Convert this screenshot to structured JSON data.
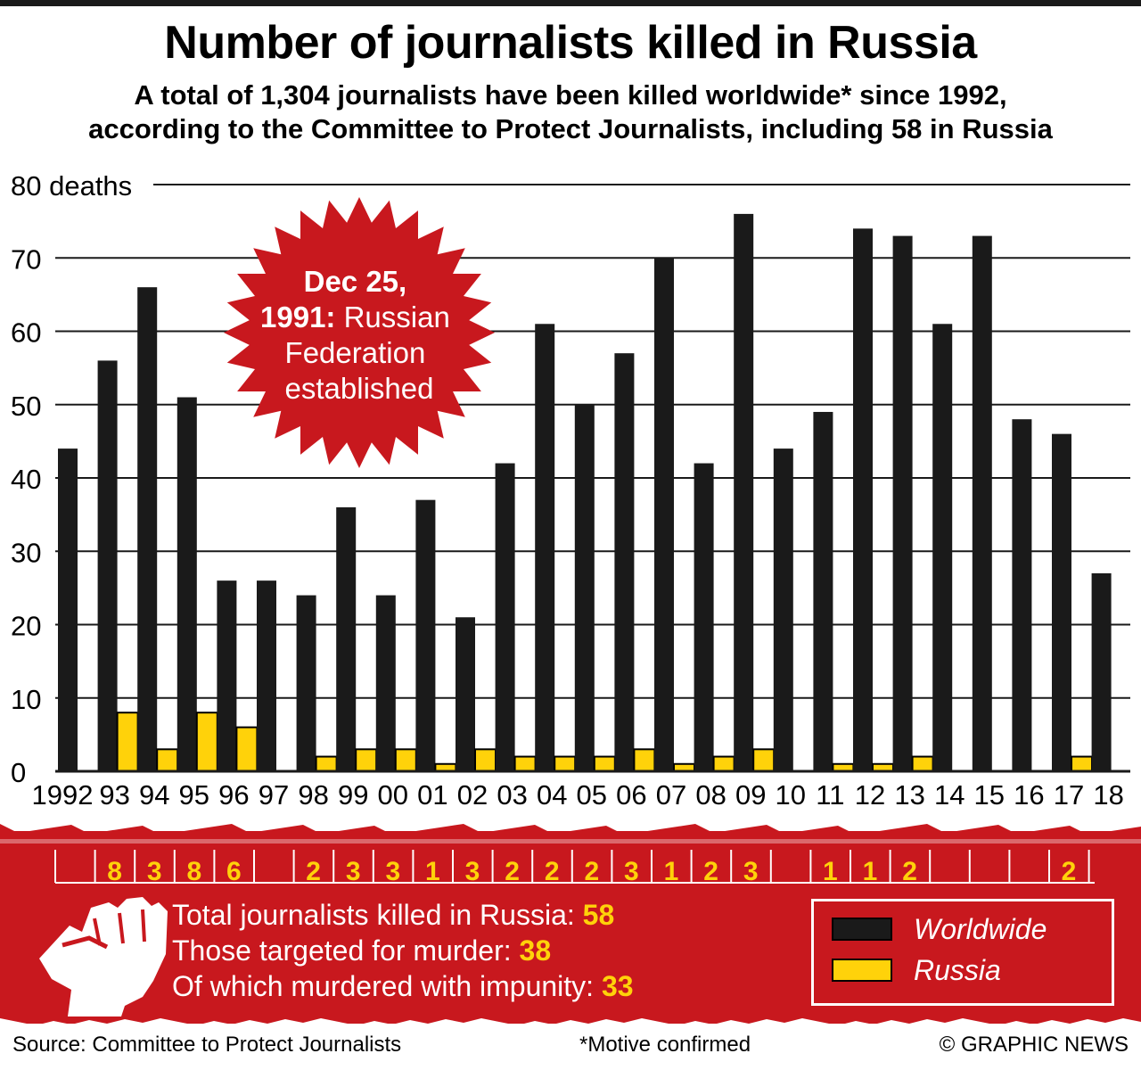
{
  "title": "Number of journalists killed in Russia",
  "subtitle_lines": [
    "A total of 1,304 journalists have been killed worldwide* since 1992,",
    "according to the Committee to Protect Journalists, including 58 in Russia"
  ],
  "annotation": {
    "bold1": "Dec 25,",
    "bold2": "1991:",
    "rest1": " Russian",
    "line3": "Federation",
    "line4": "established"
  },
  "stats": [
    {
      "label": "Total journalists killed in Russia: ",
      "value": "58"
    },
    {
      "label": "Those targeted for murder: ",
      "value": "38"
    },
    {
      "label": "Of which murdered with impunity: ",
      "value": "33"
    }
  ],
  "legend": {
    "worldwide": "Worldwide",
    "russia": "Russia"
  },
  "footer": {
    "source": "Source: Committee to Protect Journalists",
    "note": "*Motive confirmed",
    "credit": "© GRAPHIC NEWS"
  },
  "colors": {
    "worldwide": "#1a1a1a",
    "russia": "#ffd20a",
    "accent_red": "#c8181e"
  },
  "chart_data": {
    "type": "bar",
    "categories": [
      "1992",
      "93",
      "94",
      "95",
      "96",
      "97",
      "98",
      "99",
      "00",
      "01",
      "02",
      "03",
      "04",
      "05",
      "06",
      "07",
      "08",
      "09",
      "10",
      "11",
      "12",
      "13",
      "14",
      "15",
      "16",
      "17",
      "18"
    ],
    "series": [
      {
        "name": "Worldwide",
        "values": [
          44,
          56,
          66,
          51,
          26,
          26,
          24,
          36,
          24,
          37,
          21,
          42,
          61,
          50,
          57,
          70,
          42,
          76,
          44,
          49,
          74,
          73,
          61,
          73,
          48,
          46,
          27
        ]
      },
      {
        "name": "Russia",
        "values": [
          0,
          8,
          3,
          8,
          6,
          0,
          2,
          3,
          3,
          1,
          3,
          2,
          2,
          2,
          3,
          1,
          2,
          3,
          0,
          1,
          1,
          2,
          0,
          0,
          0,
          2,
          0
        ]
      }
    ],
    "russia_labels": [
      "",
      "8",
      "3",
      "8",
      "6",
      "",
      "2",
      "3",
      "3",
      "1",
      "3",
      "2",
      "2",
      "2",
      "3",
      "1",
      "2",
      "3",
      "",
      "1",
      "1",
      "2",
      "",
      "",
      "",
      "2",
      ""
    ],
    "y_ticks": [
      0,
      10,
      20,
      30,
      40,
      50,
      60,
      70,
      80
    ],
    "y_tick_labels": [
      "0",
      "10",
      "20",
      "30",
      "40",
      "50",
      "60",
      "70",
      "80 deaths"
    ],
    "ylim": [
      0,
      80
    ],
    "grid": true
  }
}
